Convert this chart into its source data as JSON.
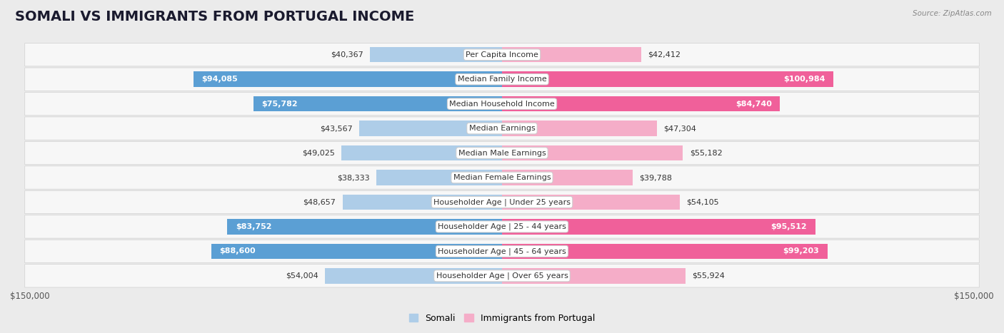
{
  "title": "SOMALI VS IMMIGRANTS FROM PORTUGAL INCOME",
  "source": "Source: ZipAtlas.com",
  "categories": [
    "Per Capita Income",
    "Median Family Income",
    "Median Household Income",
    "Median Earnings",
    "Median Male Earnings",
    "Median Female Earnings",
    "Householder Age | Under 25 years",
    "Householder Age | 25 - 44 years",
    "Householder Age | 45 - 64 years",
    "Householder Age | Over 65 years"
  ],
  "somali_values": [
    40367,
    94085,
    75782,
    43567,
    49025,
    38333,
    48657,
    83752,
    88600,
    54004
  ],
  "portugal_values": [
    42412,
    100984,
    84740,
    47304,
    55182,
    39788,
    54105,
    95512,
    99203,
    55924
  ],
  "somali_color_light": "#aecde8",
  "somali_color_dark": "#5b9fd4",
  "portugal_color_light": "#f5adc8",
  "portugal_color_dark": "#f0609a",
  "somali_label": "Somali",
  "portugal_label": "Immigrants from Portugal",
  "x_max": 150000,
  "x_axis_label_left": "$150,000",
  "x_axis_label_right": "$150,000",
  "bar_height": 0.62,
  "background_color": "#ebebeb",
  "row_color": "#f7f7f7",
  "title_fontsize": 14,
  "label_fontsize": 8.0,
  "value_fontsize": 8.0,
  "inside_threshold": 65000
}
